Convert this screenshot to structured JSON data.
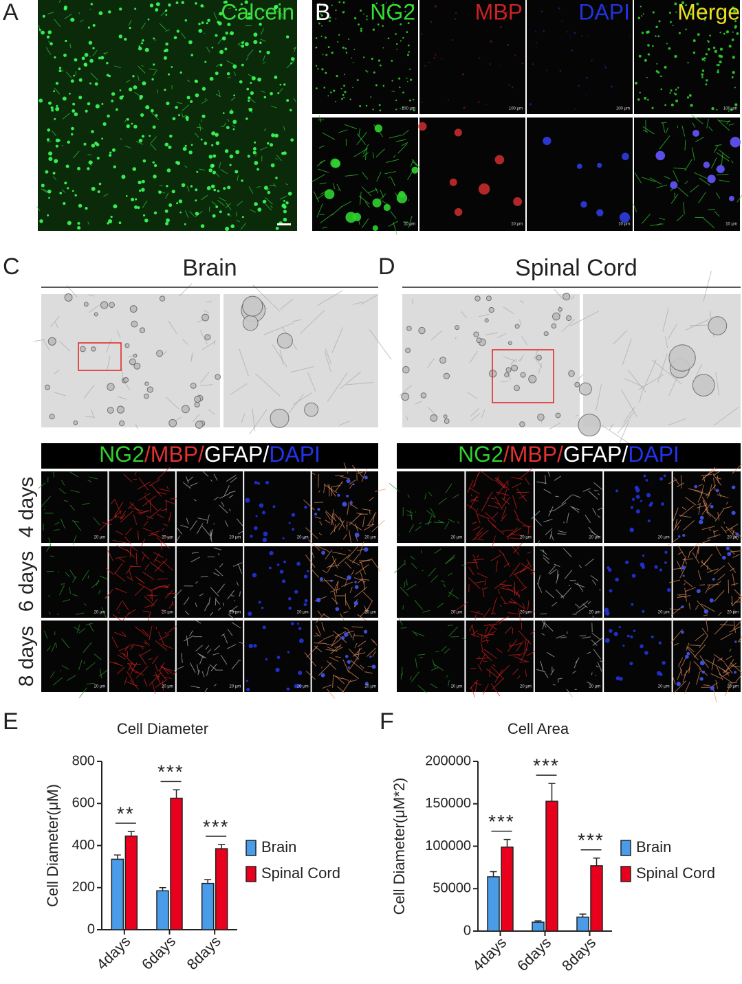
{
  "panels": {
    "A": {
      "letter": "A",
      "label": "Calcein"
    },
    "B": {
      "letter": "B",
      "channels": [
        "NG2",
        "MBP",
        "DAPI",
        "Merge"
      ],
      "scale_top": "100 µm",
      "scale_bottom": "10 µm"
    },
    "C": {
      "letter": "C",
      "title": "Brain"
    },
    "D": {
      "letter": "D",
      "title": "Spinal Cord"
    },
    "stain_header": [
      "NG2",
      "/MBP/",
      "GFAP/",
      "DAPI"
    ],
    "days": [
      "4 days",
      "6 days",
      "8 days"
    ],
    "scale_small": "20 µm",
    "E": {
      "letter": "E"
    },
    "F": {
      "letter": "F"
    }
  },
  "chart_data": [
    {
      "type": "bar",
      "title": "Cell Diameter",
      "y_label": "Cell Diameter(μM)",
      "categories": [
        "4days",
        "6days",
        "8days"
      ],
      "series": [
        {
          "name": "Brain",
          "color": "#4a9be8",
          "values": [
            335,
            185,
            220
          ],
          "errors": [
            20,
            15,
            18
          ]
        },
        {
          "name": "Spinal Cord",
          "color": "#e8001c",
          "values": [
            445,
            625,
            385
          ],
          "errors": [
            22,
            40,
            20
          ]
        }
      ],
      "annotations": [
        "**",
        "***",
        "***"
      ],
      "ylim": [
        0,
        800
      ],
      "yticks": [
        0,
        200,
        400,
        600,
        800
      ],
      "legend": "right"
    },
    {
      "type": "bar",
      "title": "Cell Area",
      "y_label": "Cell Diameter(μM*2)",
      "categories": [
        "4days",
        "6days",
        "8days"
      ],
      "series": [
        {
          "name": "Brain",
          "color": "#4a9be8",
          "values": [
            64000,
            10500,
            16500
          ],
          "errors": [
            6000,
            1500,
            3500
          ]
        },
        {
          "name": "Spinal Cord",
          "color": "#e8001c",
          "values": [
            99000,
            153000,
            77000
          ],
          "errors": [
            9000,
            21000,
            9000
          ]
        }
      ],
      "annotations": [
        "***",
        "***",
        "***"
      ],
      "ylim": [
        0,
        200000
      ],
      "yticks": [
        0,
        50000,
        100000,
        150000,
        200000
      ],
      "legend": "right"
    }
  ]
}
